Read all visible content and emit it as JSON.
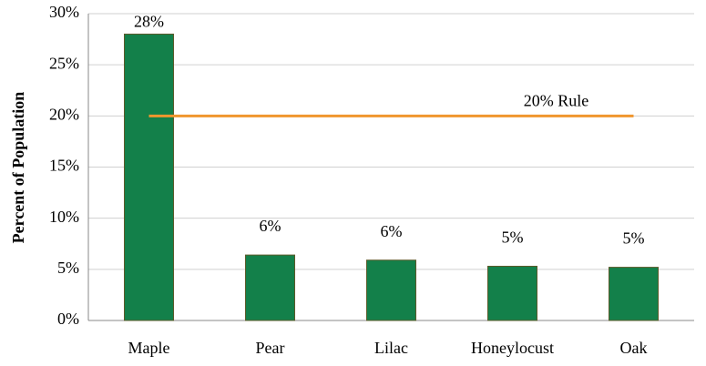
{
  "chart_data": {
    "type": "bar",
    "y_label": "Percent of Population",
    "categories": [
      "Maple",
      "Pear",
      "Lilac",
      "Honeylocust",
      "Oak"
    ],
    "values": [
      28,
      6.4,
      5.9,
      5.3,
      5.2
    ],
    "value_labels": [
      "28%",
      "6%",
      "6%",
      "5%",
      "5%"
    ],
    "color": "#13804a",
    "ylim": [
      0,
      30
    ],
    "yticks": [
      {
        "value": 0,
        "label": "0%"
      },
      {
        "value": 5,
        "label": "5%"
      },
      {
        "value": 10,
        "label": "10%"
      },
      {
        "value": 15,
        "label": "15%"
      },
      {
        "value": 20,
        "label": "20%"
      },
      {
        "value": 25,
        "label": "25%"
      },
      {
        "value": 30,
        "label": "30%"
      }
    ],
    "grid": true,
    "reference_line": {
      "value": 20,
      "label": "20% Rule",
      "color": "#f0962e"
    }
  }
}
